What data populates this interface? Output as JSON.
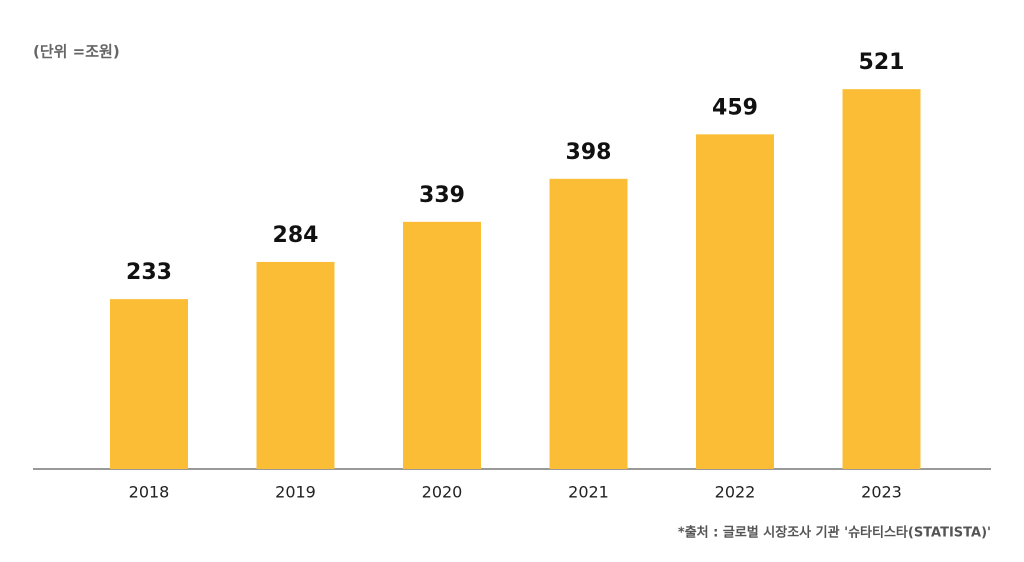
{
  "chart_data": {
    "type": "bar",
    "unit_label": "(단위 =조원)",
    "source": "*출처 : 글로벌 시장조사 기관 '슈타티스타(STATISTA)'",
    "categories": [
      "2018",
      "2019",
      "2020",
      "2021",
      "2022",
      "2023"
    ],
    "values": [
      233,
      284,
      339,
      398,
      459,
      521
    ],
    "color": "#fbbd35",
    "ylim": [
      0,
      550
    ]
  }
}
